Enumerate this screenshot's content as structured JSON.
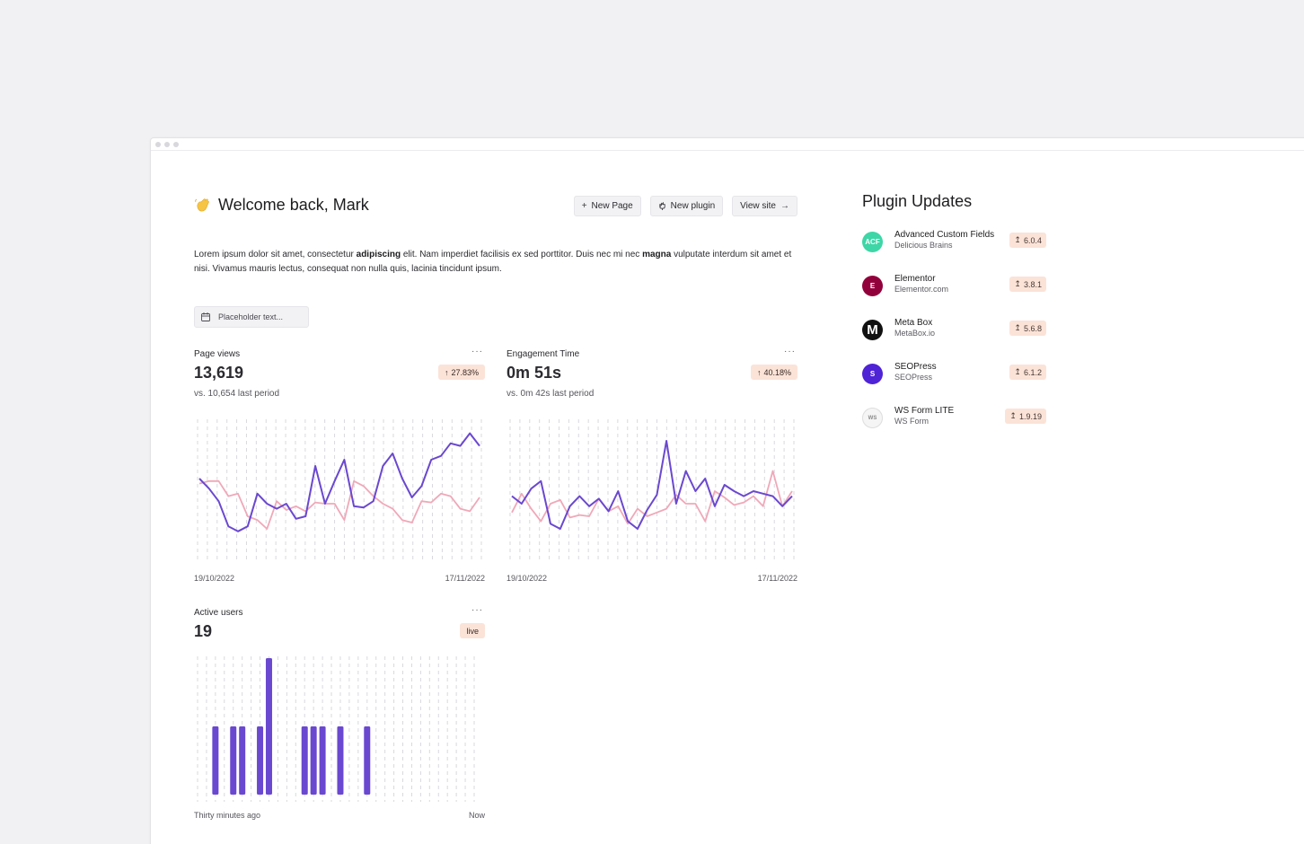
{
  "header": {
    "welcome": "Welcome back, Mark",
    "buttons": {
      "new_page": "New Page",
      "new_plugin": "New plugin",
      "view_site": "View site"
    }
  },
  "intro": {
    "part1": "Lorem ipsum dolor sit amet, consectetur ",
    "bold1": "adipiscing",
    "part2": " elit. Nam imperdiet facilisis ex sed porttitor. Duis nec mi nec ",
    "bold2": "magna",
    "part3": " vulputate interdum sit amet et nisi. Vivamus mauris lectus, consequat non nulla quis, lacinia tincidunt ipsum."
  },
  "date_filter": {
    "placeholder": "Placeholder text..."
  },
  "cards": {
    "page_views": {
      "title": "Page views",
      "more": "···",
      "value": "13,619",
      "change": "27.83%",
      "sub": "vs. 10,654 last period",
      "start": "19/10/2022",
      "end": "17/11/2022"
    },
    "engagement": {
      "title": "Engagement Time",
      "more": "···",
      "value": "0m 51s",
      "change": "40.18%",
      "sub": "vs. 0m 42s last period",
      "start": "19/10/2022",
      "end": "17/11/2022"
    },
    "active_users": {
      "title": "Active users",
      "more": "···",
      "value": "19",
      "badge": "live",
      "start": "Thirty minutes ago",
      "end": "Now"
    }
  },
  "plugins": {
    "title": "Plugin Updates",
    "items": [
      {
        "name": "Advanced Custom Fields",
        "author": "Delicious Brains",
        "version": "6.0.4",
        "logo_text": "ACF",
        "color": "#3ed6a6"
      },
      {
        "name": "Elementor",
        "author": "Elementor.com",
        "version": "3.8.1",
        "logo_text": "E",
        "color": "#92003b"
      },
      {
        "name": "Meta Box",
        "author": "MetaBox.io",
        "version": "5.6.8",
        "logo_text": "M",
        "color": "#111111"
      },
      {
        "name": "SEOPress",
        "author": "SEOPress",
        "version": "6.1.2",
        "logo_text": "S",
        "color": "#4f23d6"
      },
      {
        "name": "WS Form LITE",
        "author": "WS Form",
        "version": "1.9.19",
        "logo_text": "WS",
        "color": "#f5f5f5"
      }
    ]
  },
  "colors": {
    "primary": "#6a48d0",
    "secondary": "#f0a8b8",
    "badge": "#fbe3d8"
  },
  "chart_data": [
    {
      "type": "line",
      "title": "Page views",
      "x_range": [
        "19/10/2022",
        "17/11/2022"
      ],
      "series": [
        {
          "values": [
            60,
            52,
            42,
            22,
            18,
            22,
            48,
            40,
            36,
            40,
            28,
            30,
            70,
            40,
            58,
            75,
            38,
            37,
            42,
            70,
            80,
            60,
            45,
            54,
            75,
            78,
            88,
            86,
            96,
            86
          ]
        },
        {
          "values": [
            56,
            58,
            58,
            46,
            48,
            30,
            27,
            20,
            42,
            35,
            38,
            34,
            41,
            40,
            40,
            27,
            58,
            54,
            46,
            40,
            36,
            27,
            25,
            42,
            41,
            48,
            46,
            36,
            34,
            45
          ]
        }
      ]
    },
    {
      "type": "line",
      "title": "Engagement Time",
      "x_range": [
        "19/10/2022",
        "17/11/2022"
      ],
      "series": [
        {
          "values": [
            46,
            40,
            52,
            58,
            24,
            20,
            38,
            46,
            38,
            44,
            34,
            50,
            26,
            20,
            35,
            47,
            90,
            40,
            66,
            50,
            60,
            38,
            55,
            50,
            46,
            50,
            48,
            46,
            38,
            46
          ]
        },
        {
          "values": [
            33,
            48,
            36,
            26,
            40,
            43,
            29,
            31,
            30,
            44,
            34,
            38,
            24,
            36,
            30,
            33,
            36,
            47,
            40,
            40,
            26,
            50,
            45,
            39,
            41,
            46,
            38,
            66,
            38,
            50
          ]
        }
      ]
    },
    {
      "type": "bar",
      "title": "Active users",
      "x_range": [
        "Thirty minutes ago",
        "Now"
      ],
      "values": [
        0,
        0,
        1,
        0,
        1,
        1,
        0,
        1,
        2,
        0,
        0,
        0,
        1,
        1,
        1,
        0,
        1,
        0,
        0,
        1,
        0,
        0,
        0,
        0,
        0,
        0,
        0,
        0,
        0,
        0,
        0,
        0
      ]
    }
  ]
}
